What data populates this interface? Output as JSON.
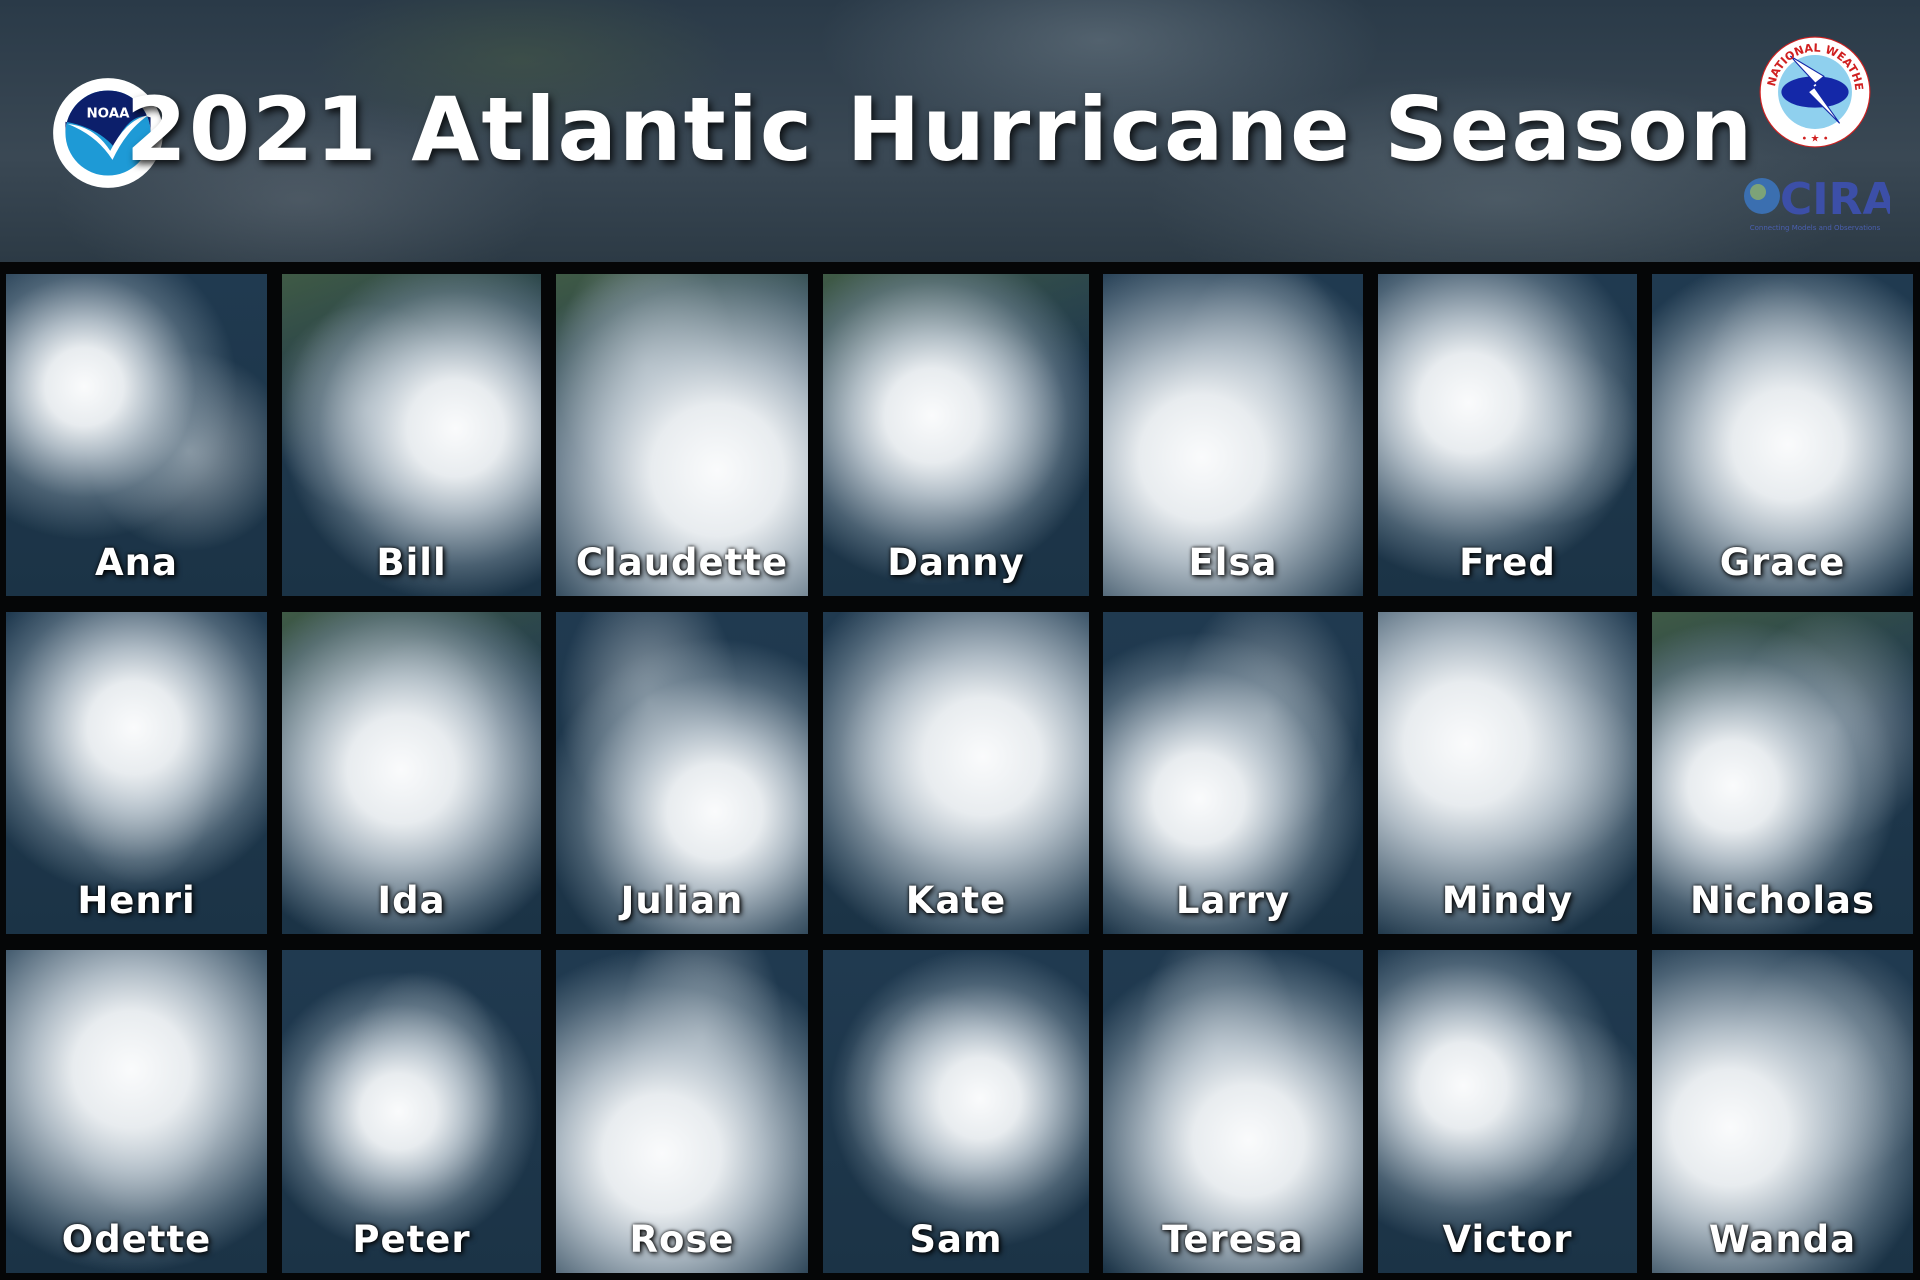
{
  "header": {
    "title": "2021 Atlantic Hurricane Season",
    "logos": {
      "noaa": "NOAA",
      "nws": "NATIONAL WEATHER SERVICE",
      "cira": "CIRA",
      "cira_tagline": "Connecting Models and Observations"
    }
  },
  "colors": {
    "ocean": "#1b3346",
    "cloud": "#f2f4f6",
    "land": "#3f5a45",
    "noaa_blue": "#1e9ad6",
    "noaa_navy": "#0c1f6b"
  },
  "storms": [
    "Ana",
    "Bill",
    "Claudette",
    "Danny",
    "Elsa",
    "Fred",
    "Grace",
    "Henri",
    "Ida",
    "Julian",
    "Kate",
    "Larry",
    "Mindy",
    "Nicholas",
    "Odette",
    "Peter",
    "Rose",
    "Sam",
    "Teresa",
    "Victor",
    "Wanda"
  ]
}
